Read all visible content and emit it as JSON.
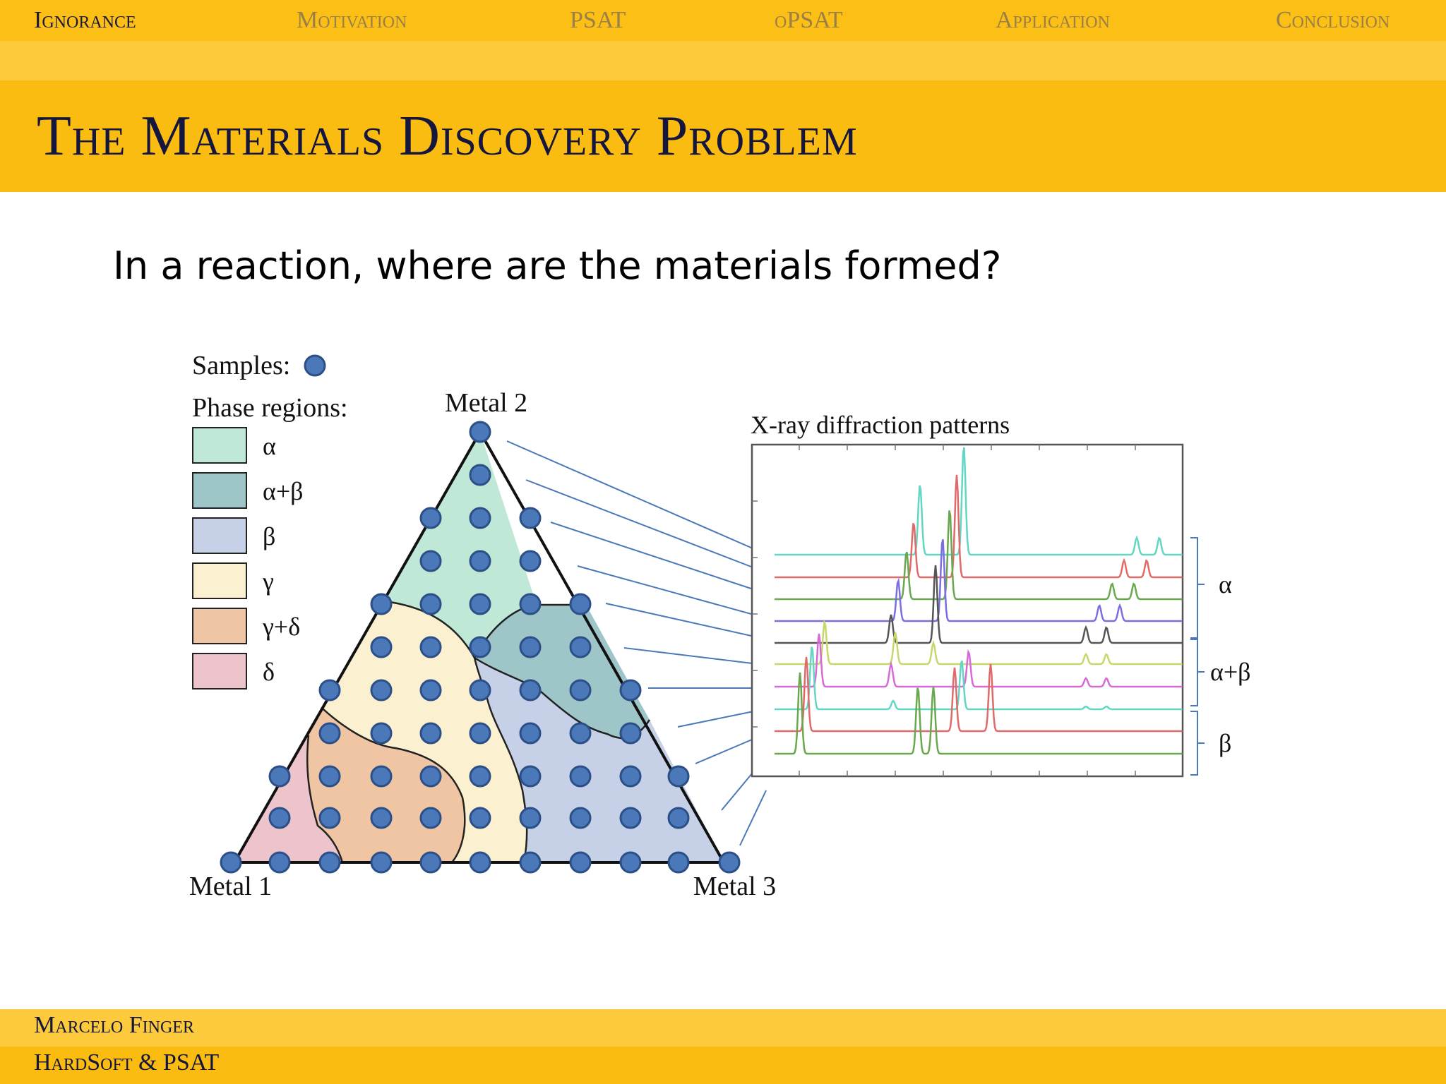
{
  "nav": {
    "items": [
      {
        "label": "Ignorance",
        "active": true
      },
      {
        "label": "Motivation",
        "active": false
      },
      {
        "label": "PSAT",
        "active": false
      },
      {
        "label": "oPSAT",
        "active": false
      },
      {
        "label": "Application",
        "active": false
      },
      {
        "label": "Conclusion",
        "active": false
      }
    ]
  },
  "slide": {
    "title": "The Materials Discovery Problem",
    "question": "In a reaction, where are the materials formed?"
  },
  "figure": {
    "samples_label": "Samples:",
    "phase_regions_label": "Phase regions:",
    "legend": [
      {
        "label": "α",
        "color": "#bfe8d6"
      },
      {
        "label": "α+β",
        "color": "#9ec5c8"
      },
      {
        "label": "β",
        "color": "#c6d1e8"
      },
      {
        "label": "γ",
        "color": "#fbf1d0"
      },
      {
        "label": "γ+δ",
        "color": "#efc5a4"
      },
      {
        "label": "δ",
        "color": "#eec4cc"
      }
    ],
    "vertex_labels": {
      "top": "Metal 2",
      "left": "Metal 1",
      "right": "Metal 3"
    },
    "xrd_title": "X-ray diffraction patterns",
    "brackets": [
      "α",
      "α+β",
      "β"
    ],
    "sample_color": "#4a78b8"
  },
  "footer": {
    "author": "Marcelo Finger",
    "talk": "HardSoft & PSAT"
  }
}
